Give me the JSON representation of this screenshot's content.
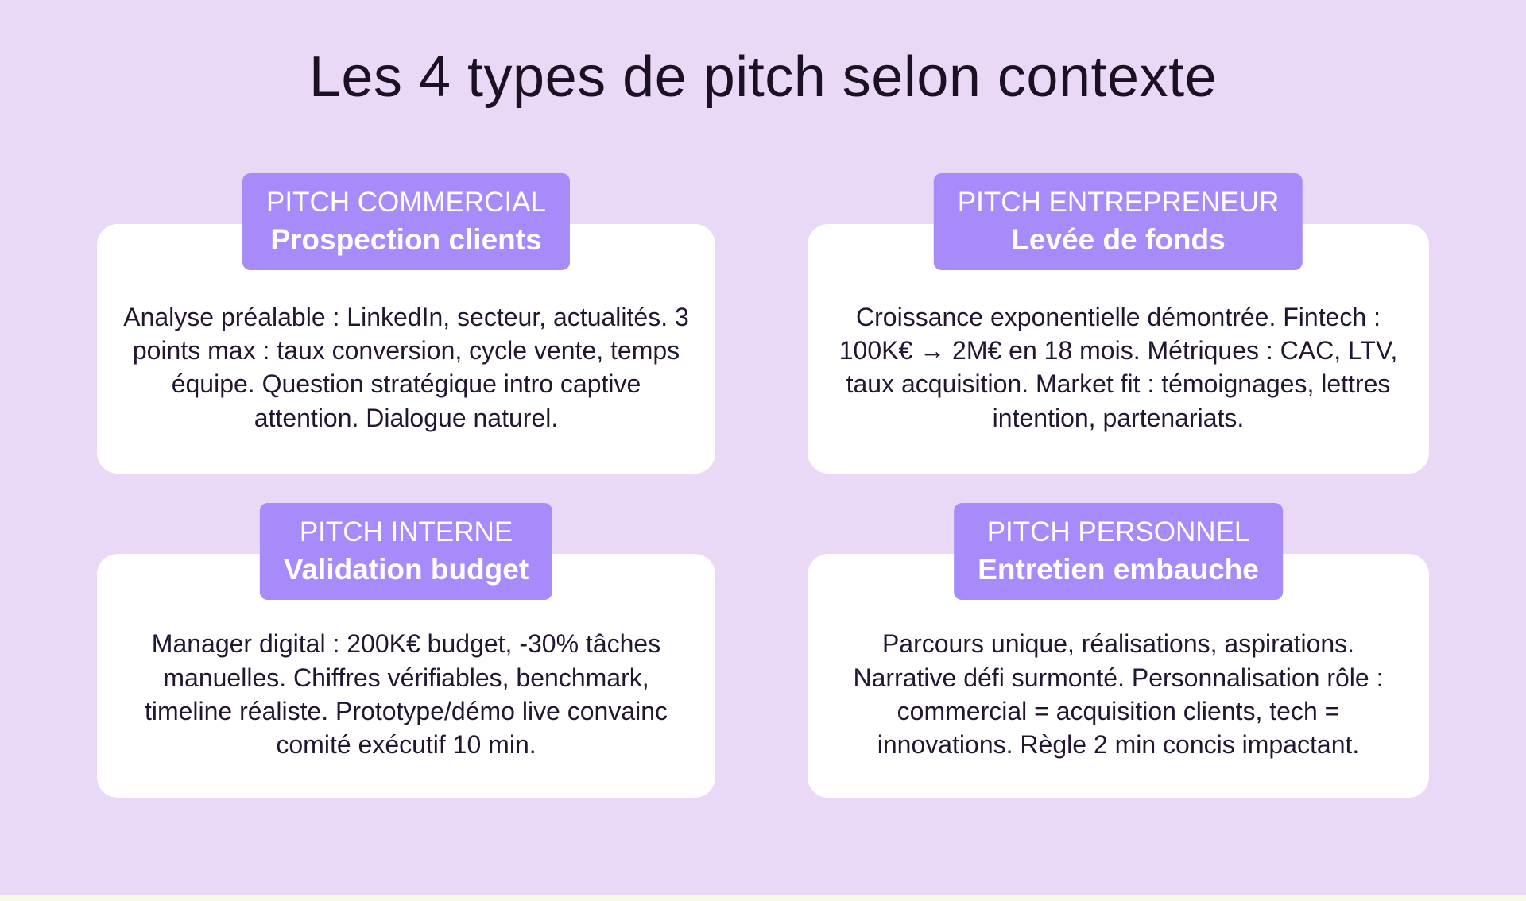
{
  "page": {
    "title": "Les 4 types de pitch selon contexte"
  },
  "colors": {
    "background": "#e9d9f6",
    "badge": "#a78bfa",
    "card": "#ffffff",
    "title_text": "#1a1123",
    "body_text": "#241630",
    "badge_text": "#ffffff",
    "bottom_strip": "#fafae2"
  },
  "cards": [
    {
      "id": "commercial",
      "header_label": "PITCH COMMERCIAL",
      "header_subtitle": "Prospection clients",
      "body": "Analyse préalable : LinkedIn, secteur, actualités. 3 points max : taux conversion, cycle vente, temps équipe. Question stratégique intro captive attention. Dialogue naturel."
    },
    {
      "id": "entrepreneur",
      "header_label": "PITCH ENTREPRENEUR",
      "header_subtitle": "Levée de fonds",
      "body": "Croissance exponentielle démontrée. Fintech : 100K€ → 2M€ en 18 mois. Métriques : CAC, LTV, taux acquisition. Market fit : témoignages, lettres intention, partenariats."
    },
    {
      "id": "interne",
      "header_label": "PITCH INTERNE",
      "header_subtitle": "Validation budget",
      "body": "Manager digital : 200K€ budget, -30% tâches manuelles. Chiffres vérifiables, benchmark, timeline réaliste. Prototype/démo live convainc comité exécutif 10 min."
    },
    {
      "id": "personnel",
      "header_label": "PITCH PERSONNEL",
      "header_subtitle": "Entretien embauche",
      "body": "Parcours unique, réalisations, aspirations. Narrative défi surmonté. Personnalisation rôle : commercial = acquisition clients, tech = innovations. Règle 2 min concis impactant."
    }
  ]
}
